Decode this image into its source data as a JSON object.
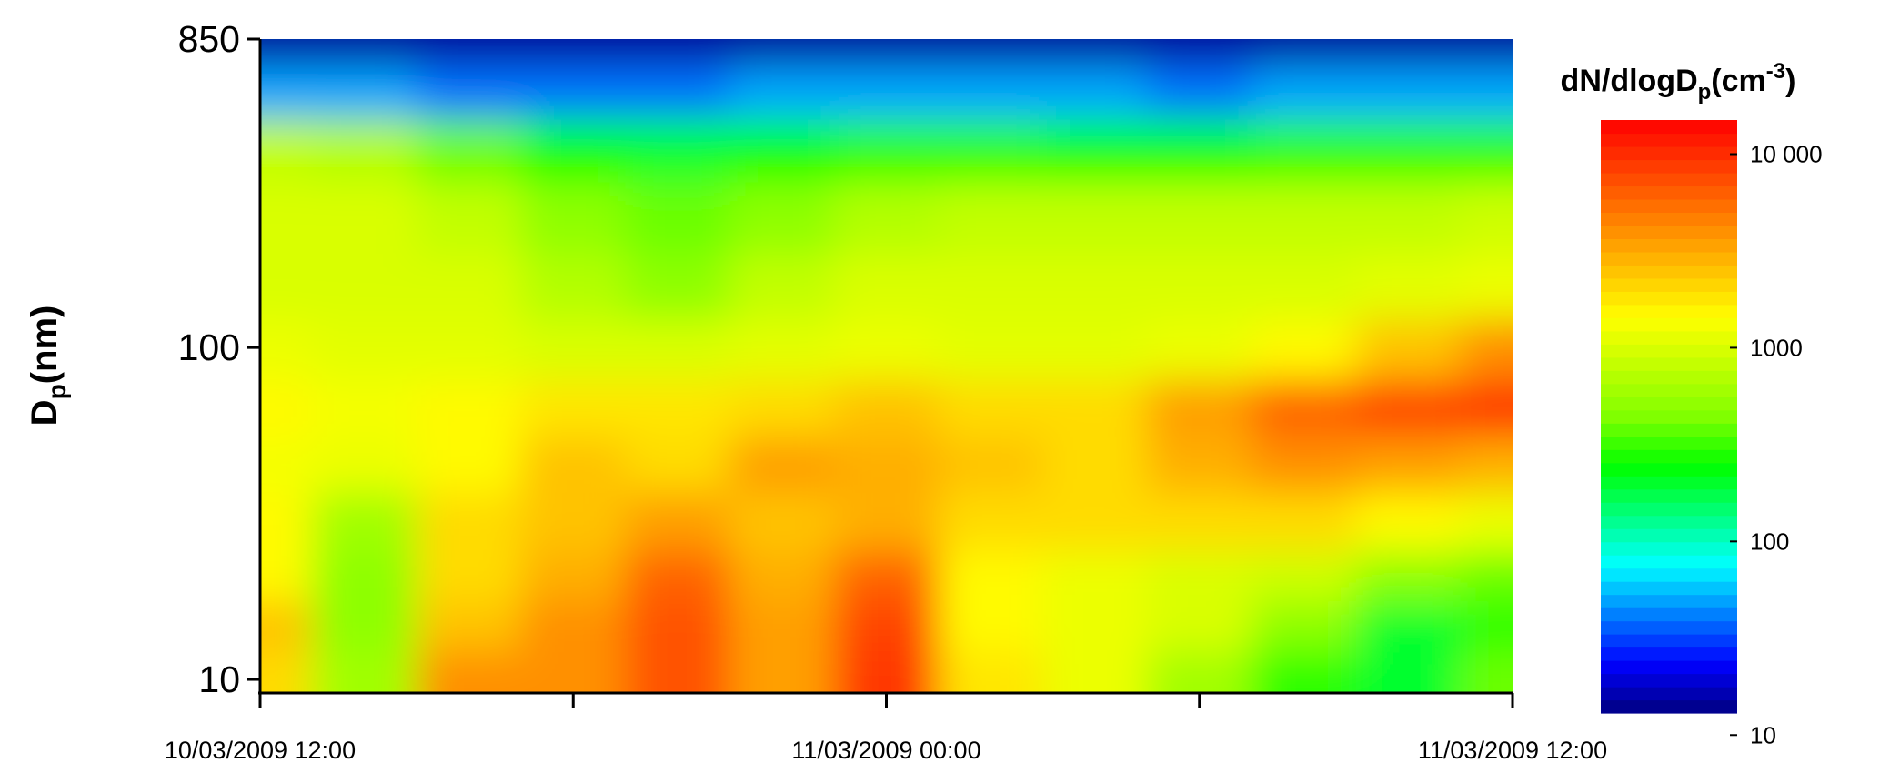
{
  "chart_data": {
    "type": "heatmap",
    "ylabel": {
      "main": "D",
      "sub": "p",
      "rest": "(nm)"
    },
    "colorbar_label": {
      "main": "dN/dlogD",
      "sub": "p",
      "open": "(cm",
      "sup": "-3",
      "close": ")"
    },
    "x": [
      "2009-03-10T12:00",
      "2009-03-10T14:00",
      "2009-03-10T16:00",
      "2009-03-10T18:00",
      "2009-03-10T20:00",
      "2009-03-10T22:00",
      "2009-03-11T00:00",
      "2009-03-11T02:00",
      "2009-03-11T04:00",
      "2009-03-11T06:00",
      "2009-03-11T08:00",
      "2009-03-11T10:00",
      "2009-03-11T12:00"
    ],
    "y": [
      10,
      15,
      20,
      30,
      45,
      65,
      100,
      150,
      250,
      400,
      600,
      850
    ],
    "z": [
      [
        2000,
        600,
        4000,
        4000,
        7000,
        3500,
        9000,
        1800,
        1200,
        600,
        300,
        200,
        400
      ],
      [
        2500,
        500,
        2500,
        4000,
        7000,
        3500,
        8000,
        1500,
        1200,
        1000,
        500,
        200,
        300
      ],
      [
        1500,
        500,
        2000,
        3000,
        6000,
        3000,
        6000,
        1500,
        1200,
        1000,
        900,
        500,
        400
      ],
      [
        1500,
        600,
        2000,
        2500,
        3500,
        2500,
        3000,
        2000,
        2000,
        2000,
        2000,
        1500,
        1200
      ],
      [
        1300,
        1200,
        1500,
        2500,
        2000,
        3500,
        3000,
        2500,
        2000,
        3000,
        4000,
        3500,
        3000
      ],
      [
        1500,
        1300,
        1500,
        1800,
        1800,
        2000,
        2500,
        2000,
        2000,
        3500,
        6000,
        8000,
        9000
      ],
      [
        1200,
        1100,
        1100,
        1000,
        1000,
        1100,
        1200,
        1100,
        1100,
        1200,
        1500,
        2500,
        4000
      ],
      [
        1000,
        1000,
        1000,
        700,
        500,
        800,
        1000,
        1000,
        1000,
        1000,
        1000,
        1100,
        1200
      ],
      [
        1000,
        1000,
        800,
        500,
        400,
        500,
        700,
        800,
        800,
        800,
        800,
        800,
        900
      ],
      [
        800,
        700,
        400,
        250,
        200,
        250,
        300,
        300,
        250,
        250,
        300,
        300,
        300
      ],
      [
        50,
        50,
        40,
        40,
        40,
        50,
        50,
        50,
        50,
        40,
        50,
        50,
        50
      ],
      [
        15,
        15,
        15,
        15,
        15,
        15,
        15,
        15,
        15,
        15,
        15,
        15,
        15
      ]
    ],
    "xlim": [
      "2009-03-10T12:00",
      "2009-03-11T12:00"
    ],
    "xticks": [
      {
        "value": "2009-03-10T12:00",
        "label": "10/03/2009 12:00"
      },
      {
        "value": "2009-03-10T18:00",
        "label": null
      },
      {
        "value": "2009-03-11T00:00",
        "label": "11/03/2009 00:00"
      },
      {
        "value": "2009-03-11T06:00",
        "label": null
      },
      {
        "value": "2009-03-11T12:00",
        "label": "11/03/2009 12:00"
      }
    ],
    "ylim": [
      9.1,
      850
    ],
    "yticks": [
      10,
      100,
      850
    ],
    "ylog": true,
    "zlim": [
      13,
      15000
    ],
    "zlog": true,
    "cticks": [
      10,
      100,
      1000,
      {
        "value": 10000,
        "label": "10 000"
      }
    ],
    "colormap": [
      "#00007f",
      "#0000ff",
      "#0080ff",
      "#00ffff",
      "#00ff80",
      "#00ff00",
      "#80ff00",
      "#c0ff00",
      "#ffff00",
      "#ffc000",
      "#ff8000",
      "#ff4000",
      "#ff0000"
    ]
  }
}
